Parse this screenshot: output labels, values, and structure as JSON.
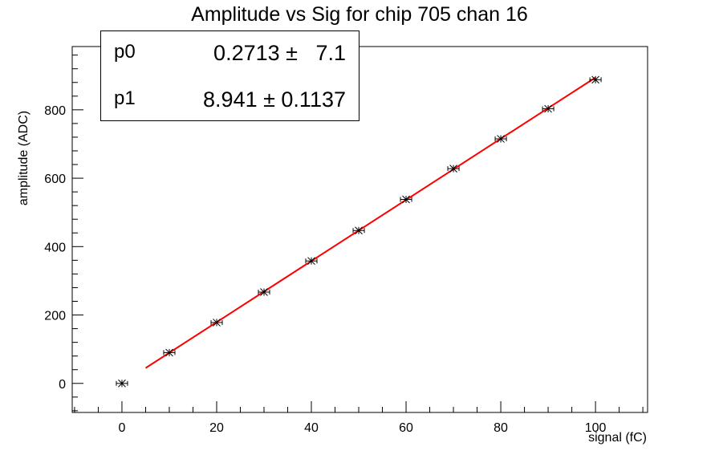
{
  "chart_data": {
    "type": "scatter",
    "title": "Amplitude vs Sig for chip 705 chan 16",
    "xlabel": "signal (fC)",
    "ylabel": "amplitude (ADC)",
    "xlim": [
      -10.5,
      111
    ],
    "ylim": [
      -85,
      985
    ],
    "x_ticks": [
      0,
      20,
      40,
      60,
      80,
      100
    ],
    "y_ticks": [
      0,
      200,
      400,
      600,
      800
    ],
    "grid": false,
    "points": {
      "x": [
        0,
        10,
        20,
        30,
        40,
        50,
        60,
        70,
        80,
        90,
        100
      ],
      "y": [
        0,
        90,
        178,
        267,
        358,
        447,
        538,
        628,
        715,
        803,
        888
      ]
    },
    "fit": {
      "name": "linear fit",
      "color": "#ff0000",
      "x_range": [
        5,
        100
      ],
      "p0": 0.2713,
      "p1": 8.941
    },
    "stats_box": {
      "position": "top-left",
      "rows": [
        {
          "name": "p0",
          "value": "0.2713 ±   7.1"
        },
        {
          "name": "p1",
          "value": "8.941 ± 0.1137"
        }
      ]
    }
  }
}
